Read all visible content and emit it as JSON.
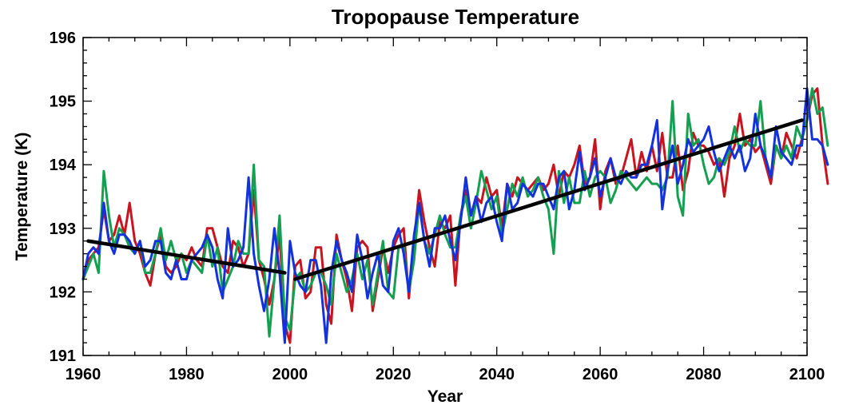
{
  "chart_data": {
    "type": "line",
    "title": "Tropopause Temperature",
    "xlabel": "Year",
    "ylabel": "Temperature (K)",
    "xlim": [
      1960,
      2100
    ],
    "ylim": [
      191,
      196
    ],
    "xticks": [
      1960,
      1980,
      2000,
      2020,
      2040,
      2060,
      2080,
      2100
    ],
    "yticks": [
      191,
      192,
      193,
      194,
      195,
      196
    ],
    "grid": false,
    "x_start": 1960,
    "x_step": 1,
    "series": [
      {
        "color": "#c8141e",
        "values": [
          192.2,
          192.5,
          192.6,
          192.7,
          193.3,
          192.8,
          192.9,
          193.2,
          192.9,
          193.4,
          192.8,
          192.6,
          192.3,
          192.1,
          192.6,
          192.9,
          192.4,
          192.3,
          192.4,
          192.6,
          192.5,
          192.7,
          192.5,
          192.4,
          193.0,
          193.0,
          192.7,
          192.4,
          192.3,
          192.8,
          192.7,
          192.4,
          192.6,
          193.6,
          192.5,
          192.2,
          191.8,
          192.2,
          192.9,
          191.5,
          191.2,
          192.4,
          192.5,
          191.9,
          192.0,
          192.7,
          192.7,
          191.8,
          191.5,
          192.9,
          192.5,
          192.2,
          191.7,
          192.7,
          192.8,
          192.7,
          191.7,
          192.2,
          192.7,
          192.3,
          192.7,
          192.9,
          193.0,
          191.9,
          192.8,
          193.6,
          193.1,
          192.7,
          192.4,
          193.1,
          193.0,
          193.2,
          192.1,
          193.2,
          193.6,
          193.2,
          193.5,
          193.4,
          193.8,
          193.5,
          193.6,
          193.0,
          193.7,
          193.5,
          193.8,
          193.7,
          193.6,
          193.7,
          193.8,
          193.6,
          193.7,
          194.0,
          193.5,
          193.9,
          193.8,
          194.0,
          194.3,
          193.7,
          193.8,
          194.4,
          193.3,
          193.9,
          194.1,
          193.7,
          193.8,
          194.1,
          194.4,
          193.8,
          194.2,
          193.9,
          194.3,
          193.9,
          194.5,
          193.8,
          193.8,
          194.3,
          193.6,
          193.9,
          194.5,
          194.3,
          194.3,
          194.2,
          194.0,
          194.1,
          193.5,
          194.1,
          194.3,
          194.8,
          194.3,
          194.4,
          194.2,
          194.3,
          194.0,
          193.7,
          194.3,
          194.1,
          194.5,
          194.3,
          194.1,
          194.4,
          194.7,
          195.1,
          195.2,
          194.3,
          193.7
        ]
      },
      {
        "color": "#14a050",
        "values": [
          192.2,
          192.4,
          192.6,
          192.3,
          193.9,
          193.2,
          192.7,
          193.0,
          192.9,
          192.7,
          192.6,
          192.8,
          192.3,
          192.3,
          192.6,
          193.0,
          192.5,
          192.8,
          192.5,
          192.6,
          192.3,
          192.5,
          192.4,
          192.3,
          192.9,
          192.4,
          192.7,
          192.0,
          192.2,
          192.4,
          192.8,
          192.6,
          192.6,
          194.0,
          192.5,
          192.4,
          191.3,
          192.2,
          193.2,
          191.6,
          191.4,
          192.2,
          192.3,
          192.0,
          192.1,
          192.3,
          192.3,
          192.1,
          191.8,
          192.6,
          192.3,
          192.0,
          192.2,
          192.6,
          192.2,
          192.5,
          191.8,
          192.3,
          192.8,
          192.0,
          191.9,
          192.7,
          192.7,
          192.0,
          192.5,
          193.4,
          192.8,
          192.6,
          192.9,
          193.2,
          192.9,
          192.7,
          192.7,
          193.2,
          193.5,
          193.0,
          193.4,
          193.9,
          193.6,
          193.3,
          193.5,
          192.9,
          193.3,
          193.7,
          193.5,
          193.8,
          193.5,
          193.6,
          193.8,
          193.5,
          193.3,
          192.6,
          193.9,
          193.4,
          193.8,
          193.4,
          193.4,
          193.9,
          193.5,
          193.8,
          193.9,
          193.8,
          193.4,
          193.6,
          193.9,
          193.8,
          193.7,
          193.6,
          193.7,
          193.8,
          193.7,
          193.7,
          193.6,
          193.8,
          195.0,
          193.5,
          193.2,
          194.8,
          194.3,
          194.4,
          194.0,
          193.7,
          193.8,
          194.1,
          194.0,
          194.2,
          194.6,
          194.2,
          194.4,
          194.3,
          194.3,
          195.0,
          194.1,
          193.8,
          194.3,
          194.1,
          194.3,
          194.1,
          194.6,
          194.4,
          194.7,
          195.2,
          194.8,
          194.9,
          194.3
        ]
      },
      {
        "color": "#1432dc",
        "values": [
          192.2,
          192.6,
          192.7,
          192.6,
          193.4,
          192.8,
          192.6,
          192.9,
          192.9,
          192.8,
          192.6,
          192.8,
          192.4,
          192.5,
          192.8,
          192.8,
          192.3,
          192.2,
          192.5,
          192.2,
          192.2,
          192.5,
          192.6,
          192.7,
          192.9,
          192.7,
          192.2,
          191.9,
          193.0,
          192.4,
          192.5,
          192.7,
          193.8,
          192.6,
          192.1,
          191.7,
          192.2,
          193.0,
          192.3,
          191.2,
          192.8,
          192.3,
          192.1,
          192.0,
          192.5,
          192.5,
          192.1,
          191.2,
          192.3,
          192.8,
          192.5,
          192.3,
          192.0,
          192.9,
          192.5,
          191.9,
          192.3,
          192.6,
          192.1,
          192.0,
          192.8,
          193.0,
          192.6,
          192.0,
          192.9,
          193.4,
          192.8,
          192.4,
          193.0,
          193.0,
          193.2,
          192.8,
          192.5,
          193.1,
          193.8,
          193.2,
          193.5,
          193.1,
          193.4,
          193.5,
          193.1,
          192.8,
          193.7,
          193.3,
          193.4,
          193.7,
          193.6,
          193.5,
          193.7,
          193.7,
          193.5,
          193.3,
          193.8,
          193.9,
          193.3,
          193.6,
          194.2,
          193.6,
          193.8,
          194.1,
          193.5,
          193.8,
          194.1,
          193.8,
          193.7,
          193.9,
          193.8,
          193.8,
          194.0,
          194.0,
          194.3,
          194.7,
          193.3,
          193.9,
          194.3,
          193.7,
          194.0,
          194.4,
          194.2,
          194.3,
          194.4,
          194.6,
          194.2,
          193.9,
          194.1,
          194.3,
          194.1,
          194.3,
          193.9,
          194.1,
          194.8,
          194.3,
          194.1,
          193.8,
          194.6,
          194.2,
          194.1,
          194.0,
          194.3,
          194.3,
          195.2,
          194.4,
          194.4,
          194.3,
          194.0
        ]
      }
    ],
    "trend_lines": [
      {
        "x": [
          1961,
          1999
        ],
        "y": [
          192.8,
          192.3
        ]
      },
      {
        "x": [
          2001,
          2099
        ],
        "y": [
          192.2,
          194.7
        ]
      }
    ]
  }
}
